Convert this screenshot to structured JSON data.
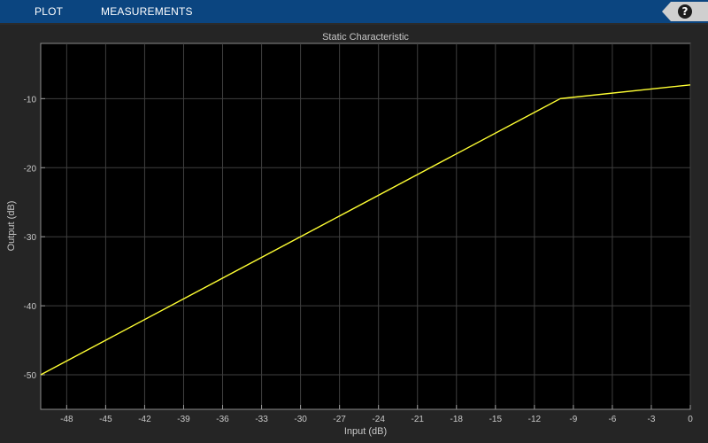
{
  "toolbar": {
    "tabs": [
      {
        "label": "PLOT"
      },
      {
        "label": "MEASUREMENTS"
      }
    ],
    "help_icon": "help-icon",
    "help_glyph": "?"
  },
  "colors": {
    "toolstrip": "#0b4580",
    "background": "#252525",
    "plot_background": "#000000",
    "grid": "#3f3f3f",
    "line": "#ffff33",
    "text": "#c8c8c8"
  },
  "chart_data": {
    "type": "line",
    "title": "Static Characteristic",
    "xlabel": "Input (dB)",
    "ylabel": "Output (dB)",
    "xlim": [
      -50,
      0
    ],
    "ylim": [
      -55,
      -2
    ],
    "xticks": [
      -48,
      -45,
      -42,
      -39,
      -36,
      -33,
      -30,
      -27,
      -24,
      -21,
      -18,
      -15,
      -12,
      -9,
      -6,
      -3,
      0
    ],
    "yticks": [
      -50,
      -40,
      -30,
      -20,
      -10
    ],
    "grid": true,
    "series": [
      {
        "x": [
          -50,
          -10,
          0
        ],
        "y": [
          -50,
          -10,
          -8
        ]
      }
    ]
  }
}
